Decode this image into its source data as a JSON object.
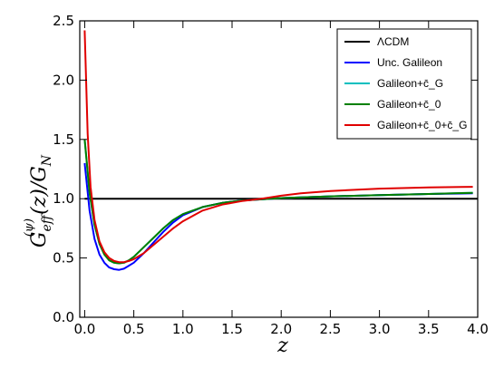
{
  "chart_data": {
    "type": "line",
    "xlabel": "z",
    "ylabel_main": "G",
    "ylabel_sub": "eff",
    "ylabel_sup": "(ψ)",
    "ylabel_tail": "(z)/G",
    "ylabel_tail_sub": "N",
    "xlim": [
      -0.05,
      4.0
    ],
    "ylim": [
      0.0,
      2.5
    ],
    "xticks": [
      "0.0",
      "0.5",
      "1.0",
      "1.5",
      "2.0",
      "2.5",
      "3.0",
      "3.5",
      "4.0"
    ],
    "yticks": [
      "0.0",
      "0.5",
      "1.0",
      "1.5",
      "2.0",
      "2.5"
    ],
    "grid": false,
    "legend_position": "top-right",
    "series": [
      {
        "name": "ΛCDM",
        "color": "#000000",
        "x": [
          0.0,
          4.0
        ],
        "y": [
          1.0,
          1.0
        ]
      },
      {
        "name": "Unc. Galileon",
        "color": "#0000ff",
        "x": [
          0.0,
          0.05,
          0.1,
          0.15,
          0.2,
          0.25,
          0.3,
          0.35,
          0.4,
          0.5,
          0.6,
          0.7,
          0.8,
          0.9,
          1.0,
          1.2,
          1.4,
          1.6,
          1.8,
          2.0,
          2.5,
          3.0,
          3.5,
          3.95
        ],
        "y": [
          1.3,
          0.9,
          0.66,
          0.53,
          0.46,
          0.42,
          0.405,
          0.4,
          0.41,
          0.46,
          0.54,
          0.63,
          0.72,
          0.8,
          0.86,
          0.93,
          0.965,
          0.985,
          0.995,
          1.005,
          1.02,
          1.03,
          1.04,
          1.045
        ]
      },
      {
        "name": "Galileon+c̄_G",
        "color": "#00bfbf",
        "x": [
          0.0,
          0.05,
          0.1,
          0.15,
          0.2,
          0.25,
          0.3,
          0.35,
          0.4,
          0.45,
          0.5,
          0.6,
          0.7,
          0.8,
          0.9,
          1.0,
          1.2,
          1.4,
          1.6,
          1.8,
          2.0,
          2.5,
          3.0,
          3.5,
          3.95
        ],
        "y": [
          1.5,
          1.05,
          0.78,
          0.62,
          0.53,
          0.48,
          0.46,
          0.455,
          0.46,
          0.48,
          0.51,
          0.59,
          0.67,
          0.75,
          0.82,
          0.87,
          0.93,
          0.965,
          0.985,
          0.995,
          1.005,
          1.02,
          1.03,
          1.04,
          1.05
        ]
      },
      {
        "name": "Galileon+c̄_0",
        "color": "#008000",
        "x": [
          0.0,
          0.05,
          0.1,
          0.15,
          0.2,
          0.25,
          0.3,
          0.35,
          0.4,
          0.45,
          0.5,
          0.6,
          0.7,
          0.8,
          0.9,
          1.0,
          1.2,
          1.4,
          1.6,
          1.8,
          2.0,
          2.5,
          3.0,
          3.5,
          3.95
        ],
        "y": [
          1.5,
          1.05,
          0.78,
          0.62,
          0.53,
          0.48,
          0.46,
          0.455,
          0.46,
          0.48,
          0.51,
          0.59,
          0.67,
          0.75,
          0.82,
          0.87,
          0.93,
          0.965,
          0.985,
          0.995,
          1.005,
          1.02,
          1.03,
          1.04,
          1.05
        ]
      },
      {
        "name": "Galileon+c̄_0+c̄_G",
        "color": "#e00000",
        "x": [
          0.0,
          0.03,
          0.06,
          0.1,
          0.15,
          0.2,
          0.25,
          0.3,
          0.35,
          0.4,
          0.45,
          0.5,
          0.6,
          0.7,
          0.8,
          0.9,
          1.0,
          1.2,
          1.4,
          1.6,
          1.8,
          2.0,
          2.2,
          2.5,
          3.0,
          3.5,
          3.95
        ],
        "y": [
          2.42,
          1.55,
          1.1,
          0.82,
          0.64,
          0.55,
          0.5,
          0.475,
          0.465,
          0.465,
          0.475,
          0.49,
          0.54,
          0.61,
          0.68,
          0.75,
          0.81,
          0.9,
          0.95,
          0.98,
          1.0,
          1.025,
          1.045,
          1.065,
          1.085,
          1.095,
          1.1
        ]
      }
    ]
  }
}
